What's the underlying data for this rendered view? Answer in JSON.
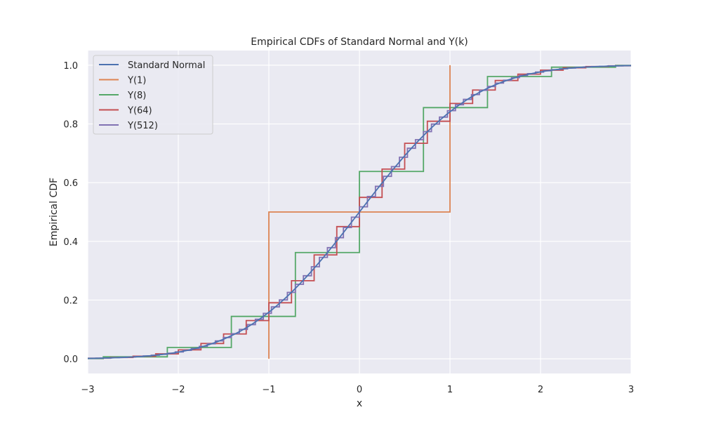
{
  "chart_data": {
    "type": "line",
    "title": "Empirical CDFs of Standard Normal and Y(k)",
    "xlabel": "x",
    "ylabel": "Empirical CDF",
    "xlim": [
      -3,
      3
    ],
    "ylim": [
      -0.05,
      1.05
    ],
    "x_ticks": [
      -3,
      -2,
      -1,
      0,
      1,
      2,
      3
    ],
    "x_tick_labels": [
      "−3",
      "−2",
      "−1",
      "0",
      "1",
      "2",
      "3"
    ],
    "y_ticks": [
      0.0,
      0.2,
      0.4,
      0.6,
      0.8,
      1.0
    ],
    "y_tick_labels": [
      "0.0",
      "0.2",
      "0.4",
      "0.6",
      "0.8",
      "1.0"
    ],
    "grid": true,
    "legend_position": "top-left",
    "series": [
      {
        "name": "Standard Normal",
        "color": "#4c72b0",
        "kind": "normal_cdf"
      },
      {
        "name": "Y(1)",
        "color": "#dd8452",
        "kind": "step",
        "k": 1
      },
      {
        "name": "Y(8)",
        "color": "#55a868",
        "kind": "step",
        "k": 8
      },
      {
        "name": "Y(64)",
        "color": "#c44e52",
        "kind": "step",
        "k": 64
      },
      {
        "name": "Y(512)",
        "color": "#8172b3",
        "kind": "step",
        "k": 512
      }
    ]
  }
}
